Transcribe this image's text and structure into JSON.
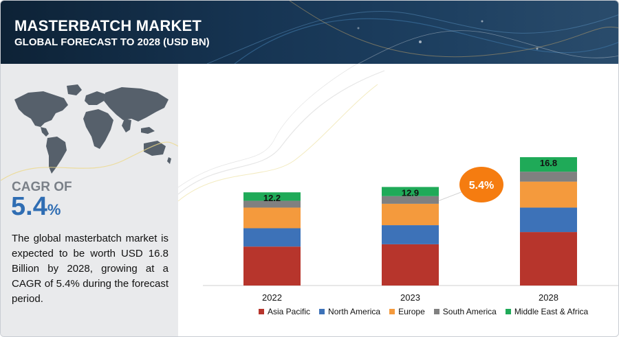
{
  "header": {
    "title": "MASTERBATCH MARKET",
    "subtitle": "GLOBAL FORECAST TO 2028 (USD BN)"
  },
  "sidebar": {
    "cagr_label": "CAGR OF",
    "cagr_number": "5.4",
    "cagr_unit": "%",
    "description": "The global masterbatch market is expected to be worth USD 16.8 Billion by 2028, growing at a CAGR of 5.4% during the forecast period."
  },
  "chart_data": {
    "type": "bar",
    "stacked": true,
    "categories": [
      "2022",
      "2023",
      "2028"
    ],
    "totals": [
      "12.2",
      "12.9",
      "16.8"
    ],
    "series": [
      {
        "name": "Asia Pacific",
        "color": "#b7352c",
        "values": [
          5.1,
          5.4,
          7.0
        ]
      },
      {
        "name": "North America",
        "color": "#3d72b8",
        "values": [
          2.4,
          2.5,
          3.2
        ]
      },
      {
        "name": "Europe",
        "color": "#f49a3d",
        "values": [
          2.7,
          2.8,
          3.4
        ]
      },
      {
        "name": "South America",
        "color": "#808080",
        "values": [
          0.9,
          1.0,
          1.3
        ]
      },
      {
        "name": "Middle East & Africa",
        "color": "#1faa58",
        "values": [
          1.1,
          1.2,
          1.9
        ]
      }
    ],
    "ylim": [
      0,
      16.8
    ],
    "annotation": "5.4%",
    "annotation_color": "#f57c10",
    "legend_position": "bottom",
    "grid": false
  }
}
